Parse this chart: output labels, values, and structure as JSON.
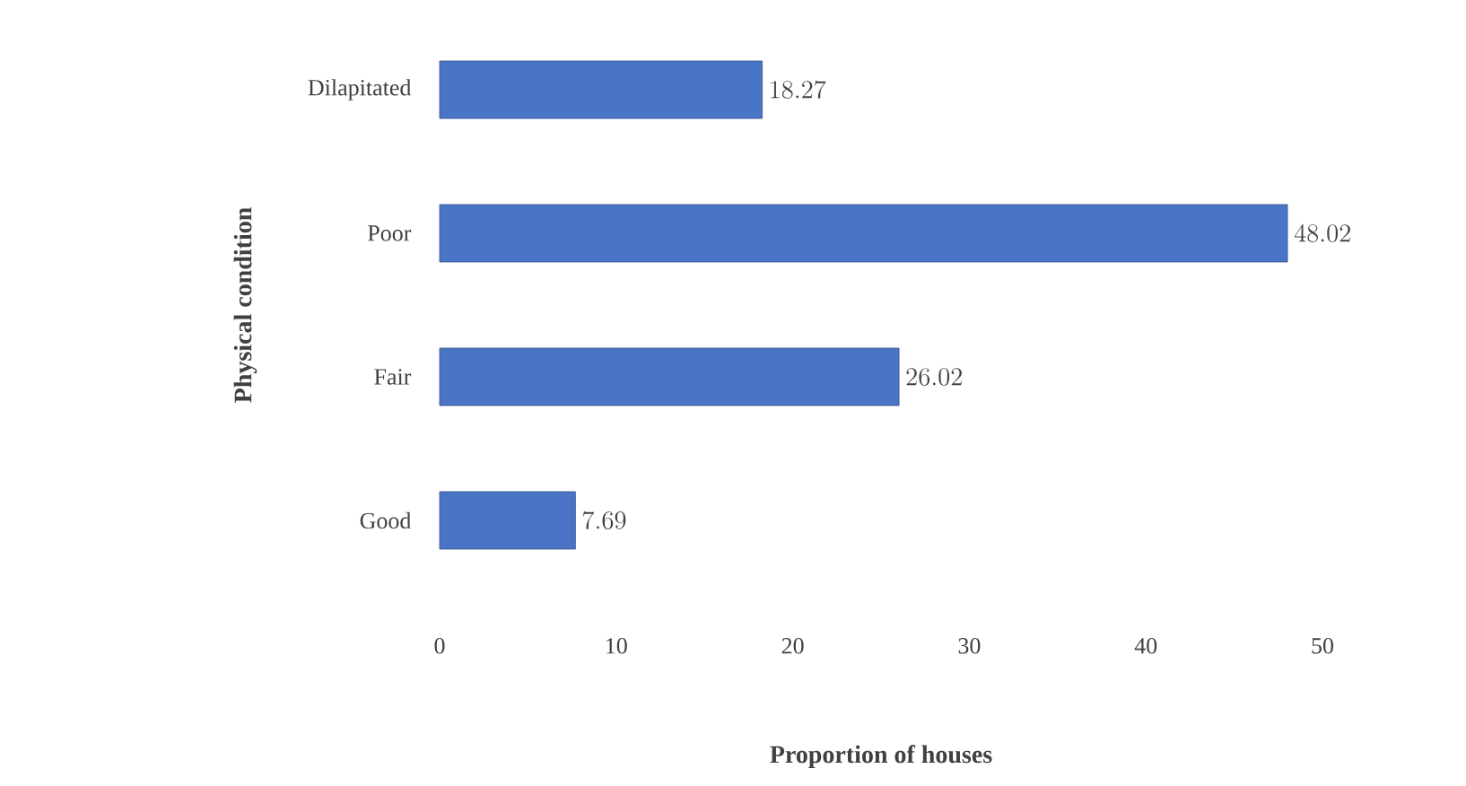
{
  "chart_data": {
    "type": "bar",
    "orientation": "horizontal",
    "xlabel": "Proportion of houses",
    "ylabel": "Physical condition",
    "categories": [
      "Dilapitated",
      "Poor",
      "Fair",
      "Good"
    ],
    "values": [
      18.27,
      48.02,
      26.02,
      7.69
    ],
    "color": "#4a74c6",
    "xlim": [
      0,
      50
    ],
    "xticks": [
      0,
      10,
      20,
      30,
      40,
      50
    ],
    "data_labels": true,
    "grid": false
  }
}
